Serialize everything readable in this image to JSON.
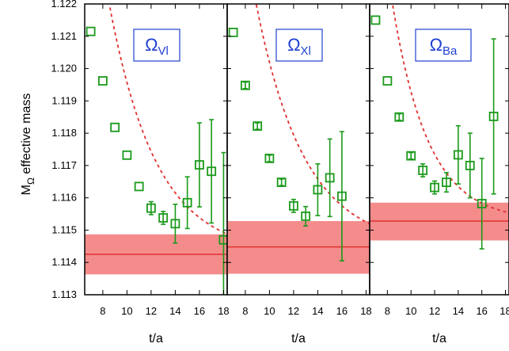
{
  "chart_data": {
    "type": "scatter",
    "ylabel_main": "M",
    "ylabel_sub": "Ω",
    "ylabel_rest": " effective mass",
    "xlabel": "t/a",
    "ylim": [
      1.113,
      1.122
    ],
    "yticks": [
      "1.113",
      "1.114",
      "1.115",
      "1.116",
      "1.117",
      "1.118",
      "1.119",
      "1.120",
      "1.121",
      "1.122"
    ],
    "colors": {
      "points": "#1a9a1a",
      "fit_curve": "#e03030",
      "band_fill": "#f48c8c",
      "band_line": "#e03030",
      "label_text": "#1f3fd0",
      "label_border": "#1f3fd0"
    },
    "panels": [
      {
        "label_main": "Ω",
        "label_sub": "Vl",
        "xlim": [
          6.5,
          18.3
        ],
        "xticks": [
          "8",
          "10",
          "12",
          "14",
          "16",
          "18"
        ],
        "band": {
          "center": 1.11425,
          "low": 1.11363,
          "high": 1.11487
        },
        "fit_curve": {
          "A": 0.0118,
          "m": 0.257,
          "x0": 6.9
        },
        "points": [
          {
            "x": 7,
            "y": 1.12115,
            "err": 0.0
          },
          {
            "x": 8,
            "y": 1.11962,
            "err": 0.0
          },
          {
            "x": 9,
            "y": 1.11818,
            "err": 0.0
          },
          {
            "x": 10,
            "y": 1.11732,
            "err": 0.0
          },
          {
            "x": 11,
            "y": 1.11635,
            "err": 0.0
          },
          {
            "x": 12,
            "y": 1.11568,
            "err": 0.0002
          },
          {
            "x": 13,
            "y": 1.11538,
            "err": 0.0002
          },
          {
            "x": 14,
            "y": 1.1152,
            "err": 0.0006
          },
          {
            "x": 15,
            "y": 1.11585,
            "err": 0.0008
          },
          {
            "x": 16,
            "y": 1.11702,
            "err": 0.0013
          },
          {
            "x": 17,
            "y": 1.11682,
            "err": 0.0016
          },
          {
            "x": 18,
            "y": 1.1147,
            "err": 0.0027
          }
        ]
      },
      {
        "label_main": "Ω",
        "label_sub": "Xl",
        "xlim": [
          6.5,
          18.3
        ],
        "xticks": [
          "8",
          "10",
          "12",
          "14",
          "16",
          "18"
        ],
        "band": {
          "center": 1.11448,
          "low": 1.11365,
          "high": 1.11528
        },
        "fit_curve": {
          "A": 0.0118,
          "m": 0.25,
          "x0": 7.1
        },
        "points": [
          {
            "x": 7,
            "y": 1.12112,
            "err": 0.0
          },
          {
            "x": 8,
            "y": 1.11948,
            "err": 0.0001
          },
          {
            "x": 9,
            "y": 1.11822,
            "err": 0.0001
          },
          {
            "x": 10,
            "y": 1.11722,
            "err": 0.0001
          },
          {
            "x": 11,
            "y": 1.11648,
            "err": 0.0001
          },
          {
            "x": 12,
            "y": 1.11575,
            "err": 0.0002
          },
          {
            "x": 13,
            "y": 1.11543,
            "err": 0.0003
          },
          {
            "x": 14,
            "y": 1.11625,
            "err": 0.0008
          },
          {
            "x": 15,
            "y": 1.11662,
            "err": 0.0012
          },
          {
            "x": 16,
            "y": 1.11605,
            "err": 0.002
          }
        ]
      },
      {
        "label_main": "Ω",
        "label_sub": "Ba",
        "xlim": [
          6.5,
          18.3
        ],
        "xticks": [
          "8",
          "10",
          "12",
          "14",
          "16",
          "18"
        ],
        "band": {
          "center": 1.11528,
          "low": 1.11468,
          "high": 1.11585
        },
        "fit_curve": {
          "A": 0.0123,
          "m": 0.33,
          "x0": 6.6
        },
        "points": [
          {
            "x": 7,
            "y": 1.1215,
            "err": 0.0
          },
          {
            "x": 8,
            "y": 1.11962,
            "err": 0.0
          },
          {
            "x": 9,
            "y": 1.1185,
            "err": 0.0001
          },
          {
            "x": 10,
            "y": 1.1173,
            "err": 0.0001
          },
          {
            "x": 11,
            "y": 1.11685,
            "err": 0.0002
          },
          {
            "x": 12,
            "y": 1.11632,
            "err": 0.0002
          },
          {
            "x": 13,
            "y": 1.11648,
            "err": 0.0003
          },
          {
            "x": 14,
            "y": 1.11733,
            "err": 0.0009
          },
          {
            "x": 15,
            "y": 1.117,
            "err": 0.001
          },
          {
            "x": 16,
            "y": 1.11582,
            "err": 0.0014
          },
          {
            "x": 17,
            "y": 1.11852,
            "err": 0.0024
          }
        ]
      }
    ]
  }
}
